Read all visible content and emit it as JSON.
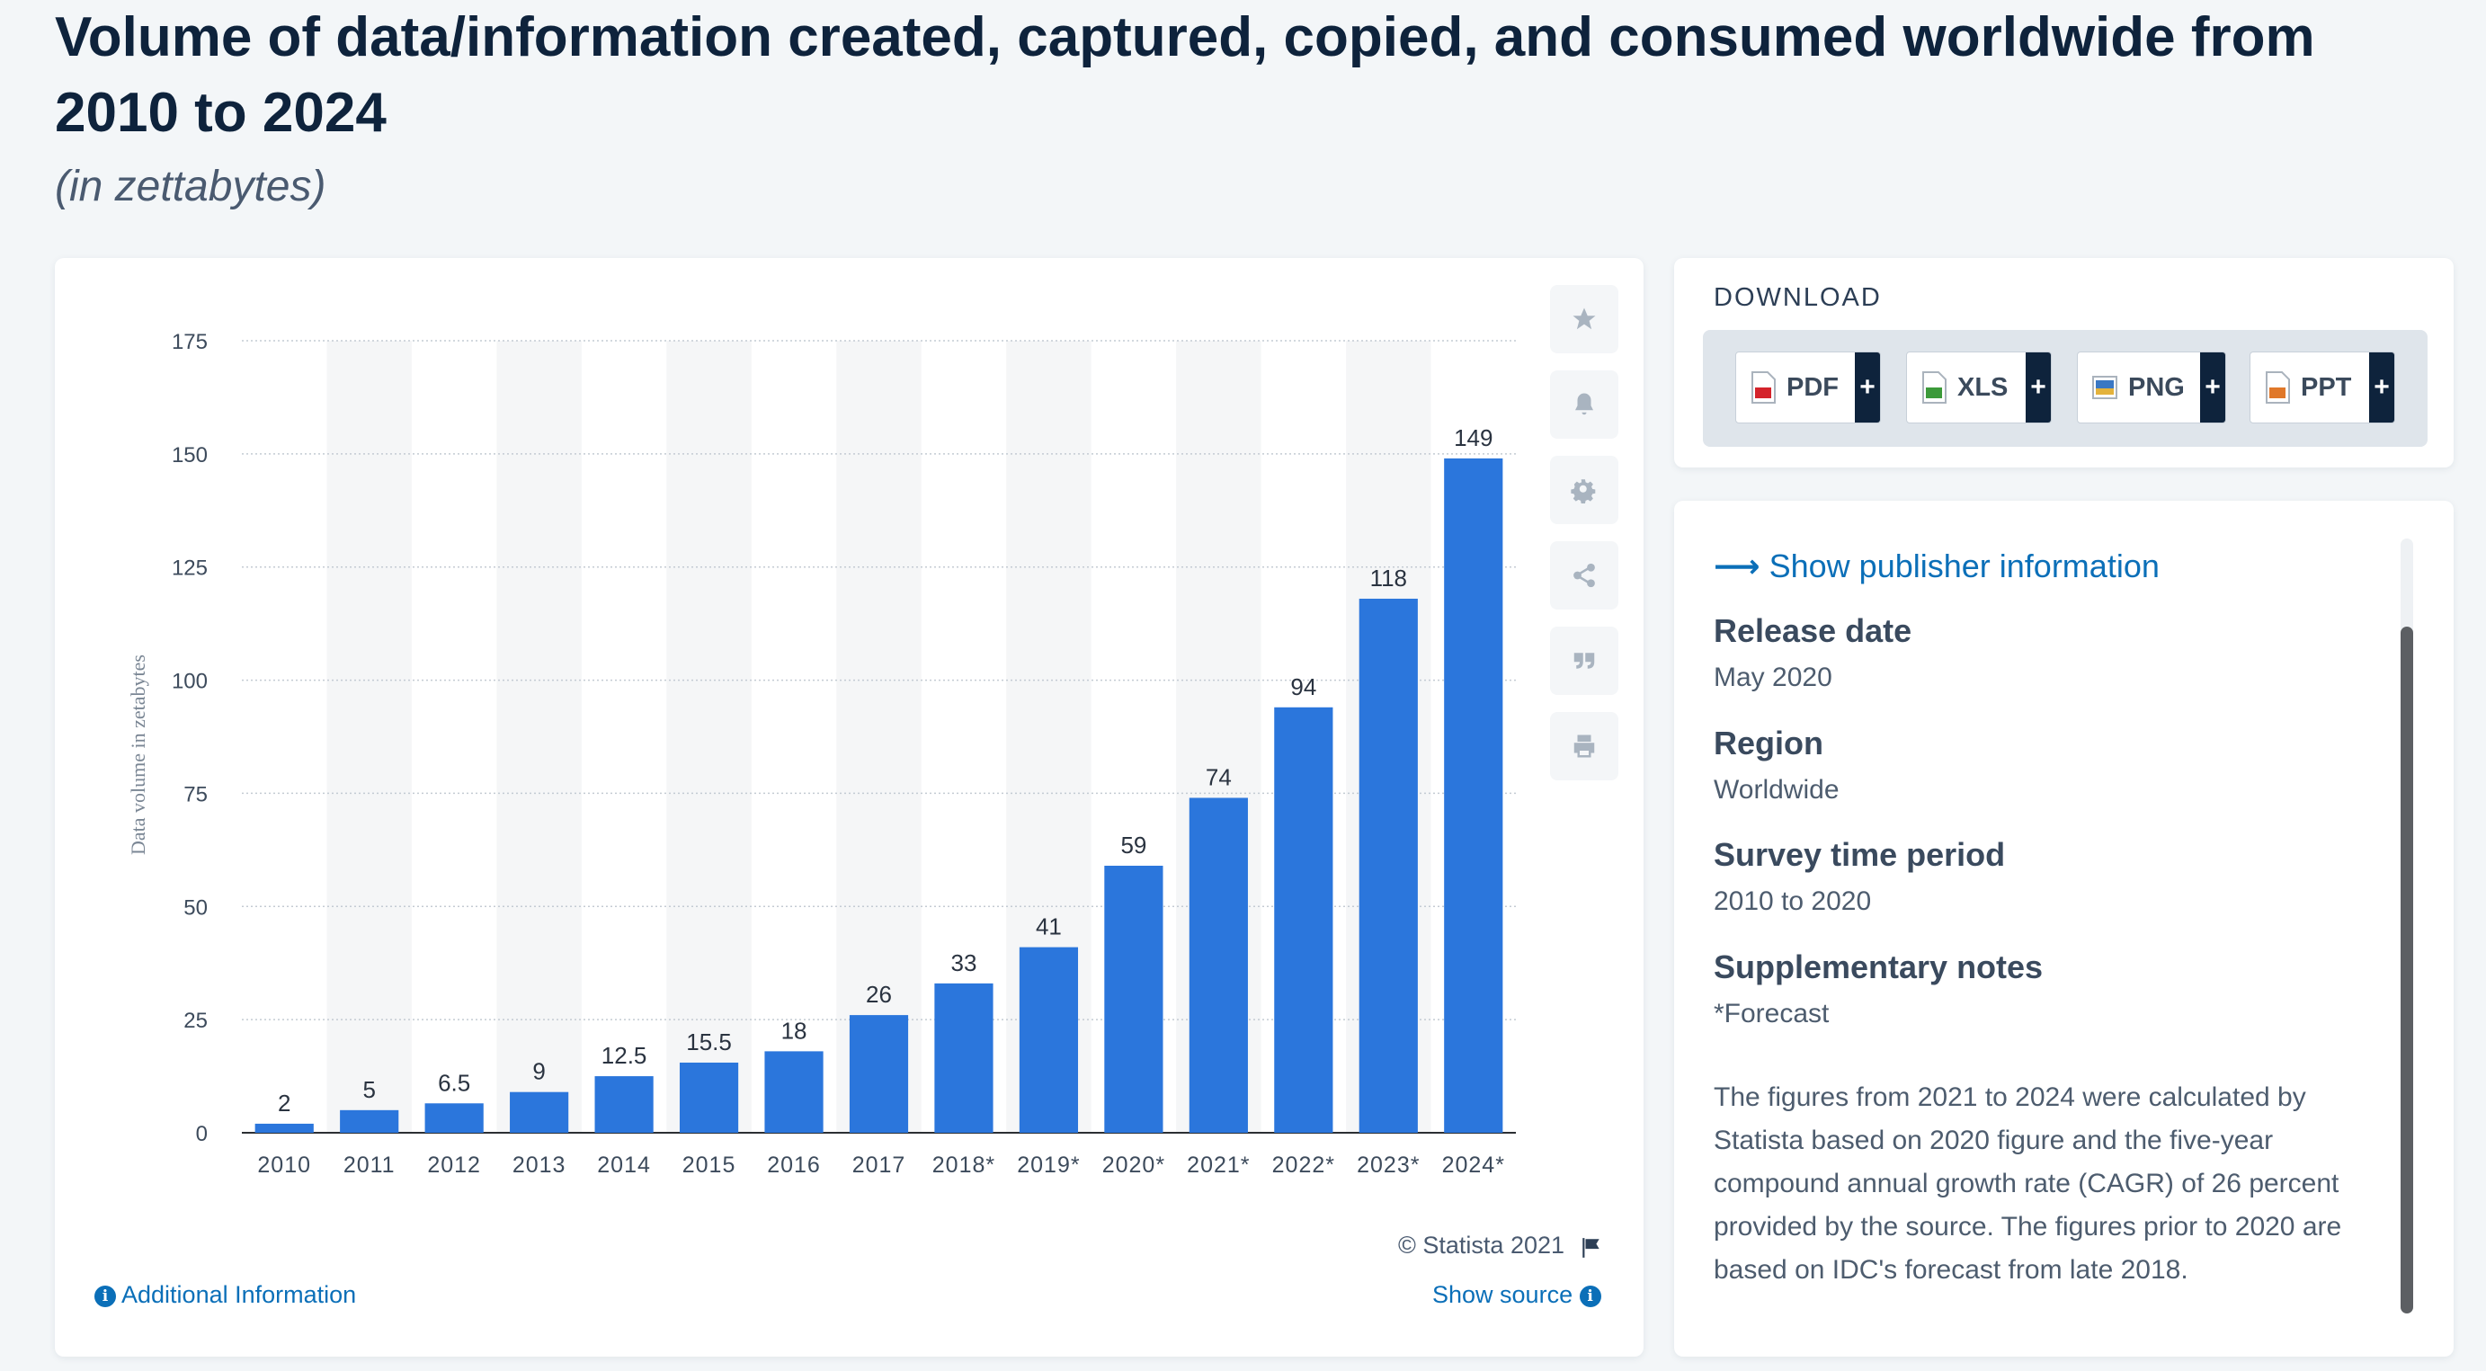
{
  "header": {
    "title": "Volume of data/information created, captured, copied, and consumed worldwide from 2010 to 2024",
    "subtitle": "(in zettabytes)"
  },
  "chart_data": {
    "type": "bar",
    "categories": [
      "2010",
      "2011",
      "2012",
      "2013",
      "2014",
      "2015",
      "2016",
      "2017",
      "2018*",
      "2019*",
      "2020*",
      "2021*",
      "2022*",
      "2023*",
      "2024*"
    ],
    "values": [
      2,
      5,
      6.5,
      9,
      12.5,
      15.5,
      18,
      26,
      33,
      41,
      59,
      74,
      94,
      118,
      149
    ],
    "value_labels": [
      "2",
      "5",
      "6.5",
      "9",
      "12.5",
      "15.5",
      "18",
      "26",
      "33",
      "41",
      "59",
      "74",
      "94",
      "118",
      "149"
    ],
    "ylabel": "Data volume in zetabytes",
    "xlabel": "",
    "ylim": [
      0,
      175
    ],
    "yticks": [
      0,
      25,
      50,
      75,
      100,
      125,
      150,
      175
    ],
    "grid": true,
    "bar_color": "#2b76dc",
    "band_color": "#f5f6f7"
  },
  "chart_footer": {
    "copyright": "© Statista 2021",
    "additional_info": "Additional Information",
    "show_source": "Show source"
  },
  "tools": [
    "star-icon",
    "bell-icon",
    "gear-icon",
    "share-icon",
    "quote-icon",
    "print-icon"
  ],
  "download": {
    "heading": "DOWNLOAD",
    "buttons": [
      {
        "label": "PDF",
        "color": "#d4232b"
      },
      {
        "label": "XLS",
        "color": "#3c9a3a"
      },
      {
        "label": "PNG",
        "color": "#3a78c4"
      },
      {
        "label": "PPT",
        "color": "#e0782a"
      }
    ],
    "plus": "+"
  },
  "info": {
    "publisher_link": "Show publisher information",
    "release_date_label": "Release date",
    "release_date": "May 2020",
    "region_label": "Region",
    "region": "Worldwide",
    "survey_label": "Survey time period",
    "survey": "2010 to 2020",
    "notes_label": "Supplementary notes",
    "notes_forecast": "*Forecast",
    "notes_text": "The figures from 2021 to 2024 were calculated by Statista based on 2020 figure and the five-year compound annual growth rate (CAGR) of 26 percent provided by the source. The figures prior to 2020 are based on IDC's forecast from late 2018."
  }
}
